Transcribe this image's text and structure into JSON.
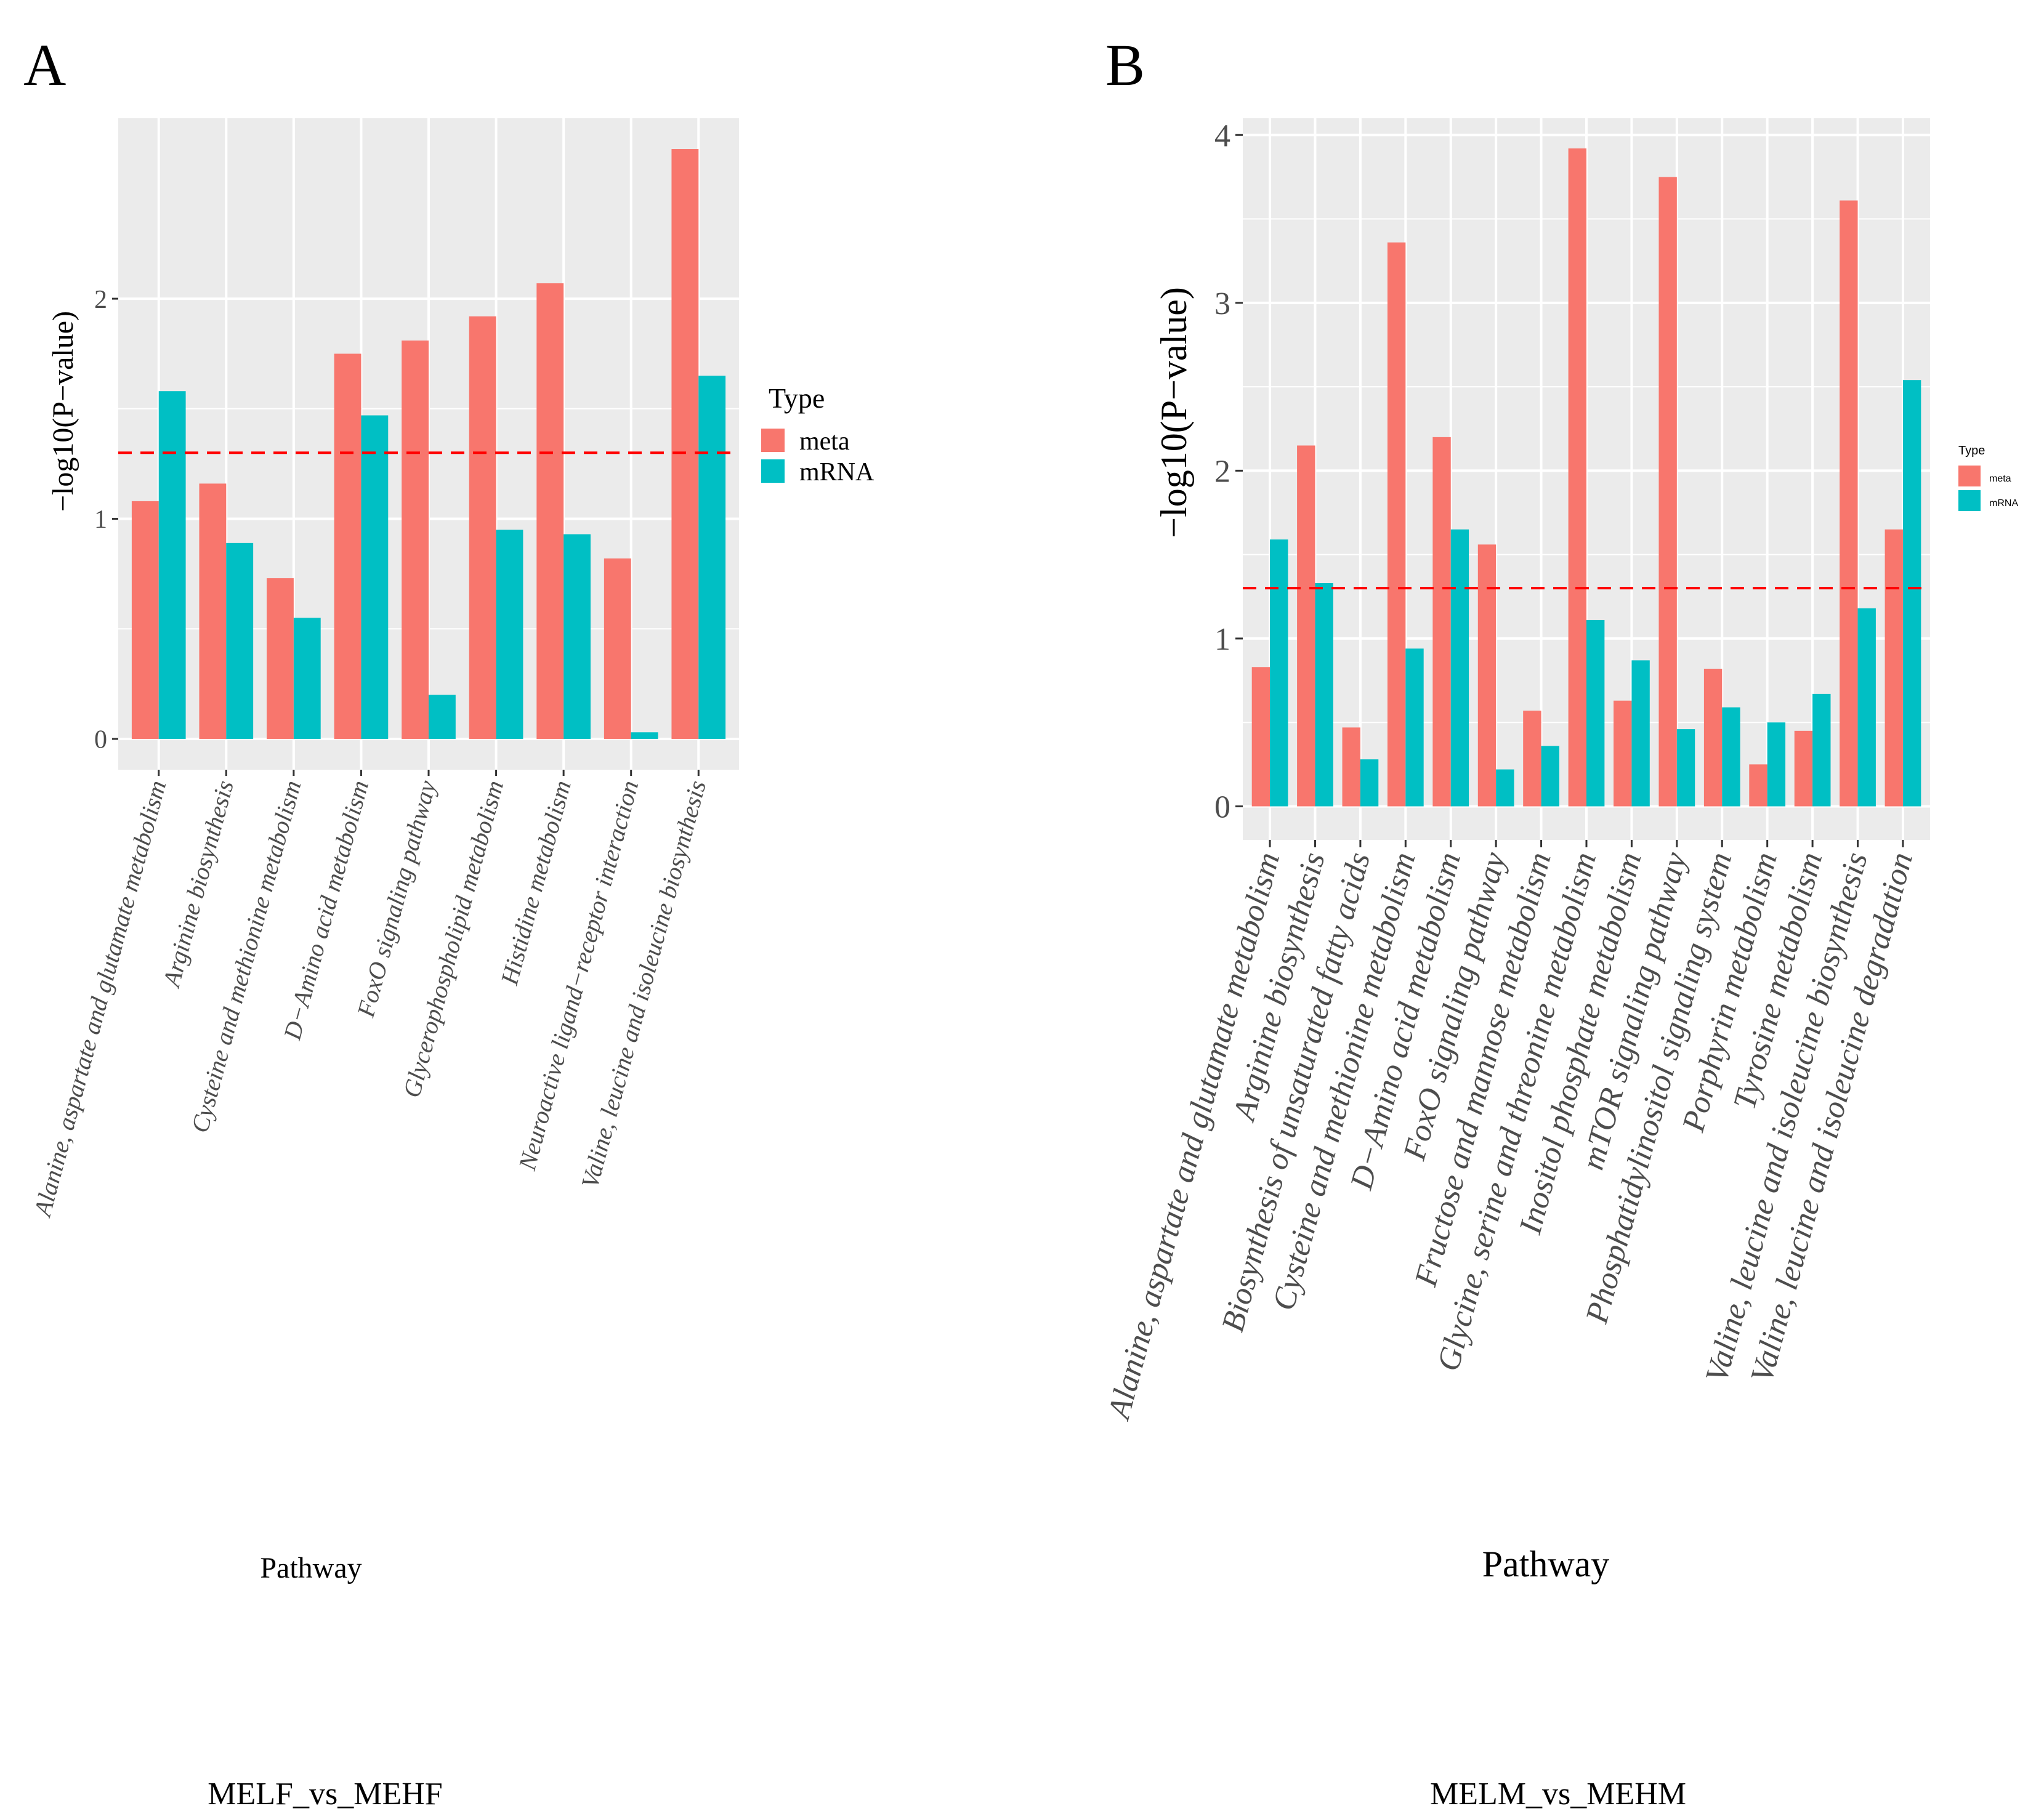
{
  "colors": {
    "meta": "#F8766D",
    "mRNA": "#00BFC4",
    "panel_bg": "#EBEBEB",
    "grid": "#FFFFFF",
    "threshold": "#FF0000",
    "axis_text": "#4D4D4D"
  },
  "chart_data": [
    {
      "panel_label": "A",
      "type": "bar",
      "title": "",
      "xlabel": "Pathway",
      "ylabel": "−log10(P−value)",
      "caption": "MELF_vs_MEHF",
      "ylim": [
        -0.14,
        2.82
      ],
      "yticks": [
        0,
        1,
        2
      ],
      "ytick_labels": [
        "0",
        "1",
        "2"
      ],
      "threshold": 1.3,
      "grid": true,
      "legend": {
        "title": "Type",
        "placement": "right",
        "entries": [
          "meta",
          "mRNA"
        ]
      },
      "categories": [
        "Alanine, aspartate and glutamate metabolism",
        "Arginine biosynthesis",
        "Cysteine and methionine metabolism",
        "D−Amino acid metabolism",
        "FoxO signaling pathway",
        "Glycerophospholipid metabolism",
        "Histidine metabolism",
        "Neuroactive ligand−receptor interaction",
        "Valine, leucine and isoleucine biosynthesis"
      ],
      "series": [
        {
          "name": "meta",
          "values": [
            1.08,
            1.16,
            0.73,
            1.75,
            1.81,
            1.92,
            2.07,
            0.82,
            2.68
          ]
        },
        {
          "name": "mRNA",
          "values": [
            1.58,
            0.89,
            0.55,
            1.47,
            0.2,
            0.95,
            0.93,
            0.03,
            1.65
          ]
        }
      ]
    },
    {
      "panel_label": "B",
      "type": "bar",
      "title": "",
      "xlabel": "Pathway",
      "ylabel": "−log10(P−value)",
      "caption": "MELM_vs_MEHM",
      "ylim": [
        -0.2,
        4.1
      ],
      "yticks": [
        0,
        1,
        2,
        3,
        4
      ],
      "ytick_labels": [
        "0",
        "1",
        "2",
        "3",
        "4"
      ],
      "threshold": 1.3,
      "grid": true,
      "legend": {
        "title": "Type",
        "placement": "right",
        "entries": [
          "meta",
          "mRNA"
        ]
      },
      "categories": [
        "Alanine, aspartate and glutamate metabolism",
        "Arginine biosynthesis",
        "Biosynthesis of unsaturated fatty acids",
        "Cysteine and methionine metabolism",
        "D−Amino acid metabolism",
        "FoxO signaling pathway",
        "Fructose and mannose metabolism",
        "Glycine, serine and threonine metabolism",
        "Inositol phosphate metabolism",
        "mTOR signaling pathway",
        "Phosphatidylinositol signaling system",
        "Porphyrin metabolism",
        "Tyrosine metabolism",
        "Valine, leucine and isoleucine biosynthesis",
        "Valine, leucine and isoleucine degradation"
      ],
      "series": [
        {
          "name": "meta",
          "values": [
            0.83,
            2.15,
            0.47,
            3.36,
            2.2,
            1.56,
            0.57,
            3.92,
            0.63,
            3.75,
            0.82,
            0.25,
            0.45,
            3.61,
            1.65
          ]
        },
        {
          "name": "mRNA",
          "values": [
            1.59,
            1.33,
            0.28,
            0.94,
            1.65,
            0.22,
            0.36,
            1.11,
            0.87,
            0.46,
            0.59,
            0.5,
            0.67,
            1.18,
            2.54
          ]
        }
      ]
    }
  ]
}
